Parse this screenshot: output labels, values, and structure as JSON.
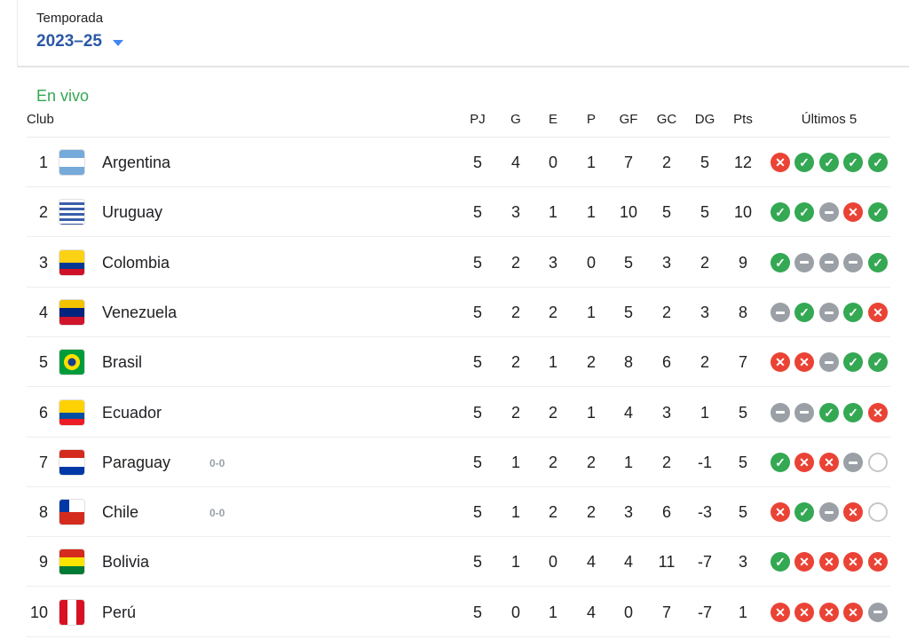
{
  "season": {
    "label": "Temporada",
    "value": "2023–25"
  },
  "live_label": "En vivo",
  "headers": {
    "club": "Club",
    "cols": [
      "PJ",
      "G",
      "E",
      "P",
      "GF",
      "GC",
      "DG",
      "Pts"
    ],
    "last5": "Últimos 5"
  },
  "result_colors": {
    "W": "#34a853",
    "L": "#ea4335",
    "D": "#9aa0a6"
  },
  "rows": [
    {
      "pos": "1",
      "team": "Argentina",
      "flag": "argentina",
      "live": "",
      "stats": [
        "5",
        "4",
        "0",
        "1",
        "7",
        "2",
        "5",
        "12"
      ],
      "last5": [
        "L",
        "W",
        "W",
        "W",
        "W"
      ]
    },
    {
      "pos": "2",
      "team": "Uruguay",
      "flag": "uruguay",
      "live": "",
      "stats": [
        "5",
        "3",
        "1",
        "1",
        "10",
        "5",
        "5",
        "10"
      ],
      "last5": [
        "W",
        "W",
        "D",
        "L",
        "W"
      ]
    },
    {
      "pos": "3",
      "team": "Colombia",
      "flag": "colombia",
      "live": "",
      "stats": [
        "5",
        "2",
        "3",
        "0",
        "5",
        "3",
        "2",
        "9"
      ],
      "last5": [
        "W",
        "D",
        "D",
        "D",
        "W"
      ]
    },
    {
      "pos": "4",
      "team": "Venezuela",
      "flag": "venezuela",
      "live": "",
      "stats": [
        "5",
        "2",
        "2",
        "1",
        "5",
        "2",
        "3",
        "8"
      ],
      "last5": [
        "D",
        "W",
        "D",
        "W",
        "L"
      ]
    },
    {
      "pos": "5",
      "team": "Brasil",
      "flag": "brasil",
      "live": "",
      "stats": [
        "5",
        "2",
        "1",
        "2",
        "8",
        "6",
        "2",
        "7"
      ],
      "last5": [
        "L",
        "L",
        "D",
        "W",
        "W"
      ]
    },
    {
      "pos": "6",
      "team": "Ecuador",
      "flag": "ecuador",
      "live": "",
      "stats": [
        "5",
        "2",
        "2",
        "1",
        "4",
        "3",
        "1",
        "5"
      ],
      "last5": [
        "D",
        "D",
        "W",
        "W",
        "L"
      ]
    },
    {
      "pos": "7",
      "team": "Paraguay",
      "flag": "paraguay",
      "live": "0-0",
      "stats": [
        "5",
        "1",
        "2",
        "2",
        "1",
        "2",
        "-1",
        "5"
      ],
      "last5": [
        "W",
        "L",
        "L",
        "D",
        "N"
      ]
    },
    {
      "pos": "8",
      "team": "Chile",
      "flag": "chile",
      "live": "0-0",
      "stats": [
        "5",
        "1",
        "2",
        "2",
        "3",
        "6",
        "-3",
        "5"
      ],
      "last5": [
        "L",
        "W",
        "D",
        "L",
        "N"
      ]
    },
    {
      "pos": "9",
      "team": "Bolivia",
      "flag": "bolivia",
      "live": "",
      "stats": [
        "5",
        "1",
        "0",
        "4",
        "4",
        "11",
        "-7",
        "3"
      ],
      "last5": [
        "W",
        "L",
        "L",
        "L",
        "L"
      ]
    },
    {
      "pos": "10",
      "team": "Perú",
      "flag": "peru",
      "live": "",
      "stats": [
        "5",
        "0",
        "1",
        "4",
        "0",
        "7",
        "-7",
        "1"
      ],
      "last5": [
        "L",
        "L",
        "L",
        "L",
        "D"
      ]
    }
  ]
}
